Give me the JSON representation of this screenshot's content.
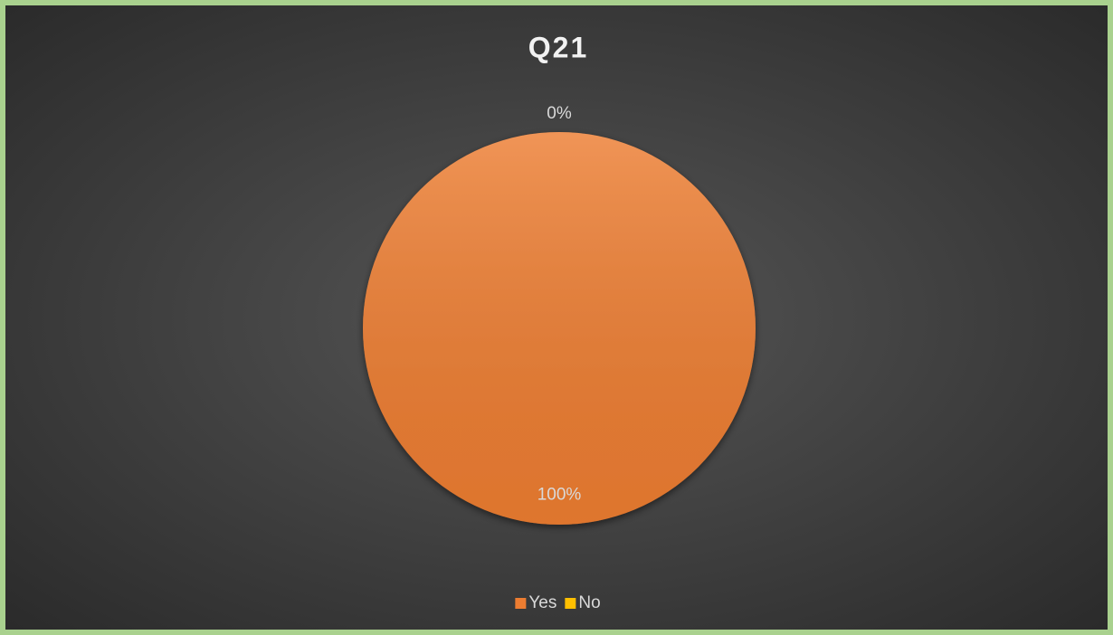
{
  "chart_data": {
    "type": "pie",
    "title": "Q21",
    "categories": [
      "Yes",
      "No"
    ],
    "values": [
      100,
      0
    ],
    "value_labels": [
      "100%",
      "0%"
    ],
    "colors": [
      "#ed7d31",
      "#ffc000"
    ],
    "legend": "bottom"
  }
}
